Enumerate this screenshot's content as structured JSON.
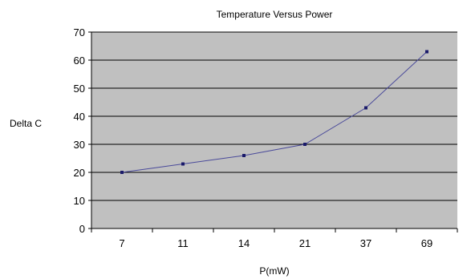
{
  "chart_data": {
    "type": "line",
    "title": "Temperature Versus Power",
    "xlabel": "P(mW)",
    "ylabel": "Delta C",
    "categories": [
      "7",
      "11",
      "14",
      "21",
      "37",
      "69"
    ],
    "series": [
      {
        "values": [
          20,
          23,
          26,
          30,
          43,
          63
        ]
      }
    ],
    "ylim": [
      0,
      70
    ],
    "yticks": [
      0,
      10,
      20,
      30,
      40,
      50,
      60,
      70
    ],
    "grid": true,
    "legend": "none",
    "colors": {
      "plot_background": "#c0c0c0",
      "gridline": "#000000",
      "series_line": "#4a4a9a",
      "marker": "#1a1a6a"
    }
  }
}
